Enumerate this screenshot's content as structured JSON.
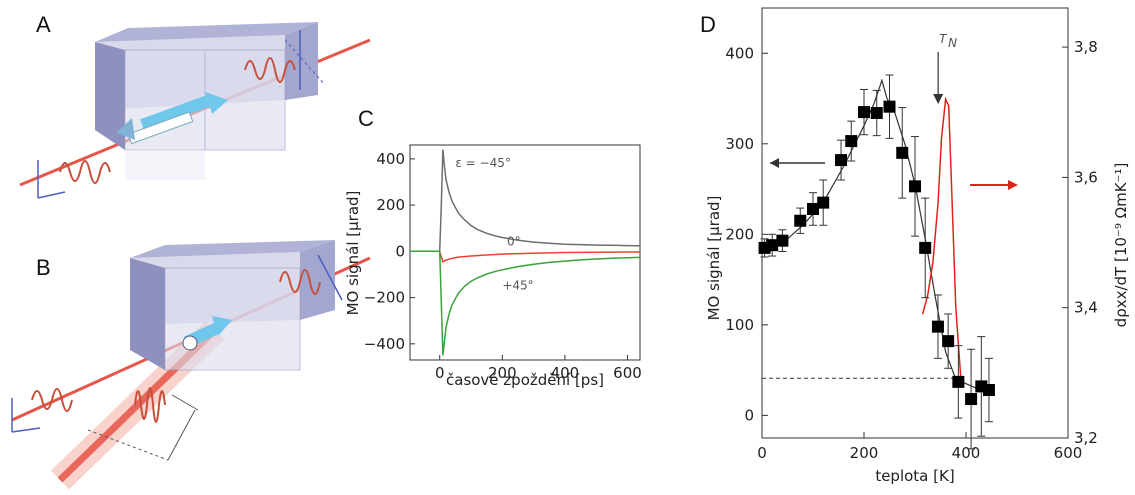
{
  "panels": {
    "a": "A",
    "b": "B",
    "c": "C",
    "d": "D"
  },
  "chart_data": [
    {
      "panel": "C",
      "type": "line",
      "xlabel": "časové zpoždění [ps]",
      "ylabel": "MO signál [μrad]",
      "xlim": [
        -95,
        640
      ],
      "ylim": [
        -470,
        460
      ],
      "xticks": [
        "0",
        "200",
        "400",
        "600"
      ],
      "yticks": [
        "400",
        "200",
        "0",
        "−200",
        "−400"
      ],
      "grid": false,
      "legend": "none",
      "series": [
        {
          "color": "#6e6e6e",
          "x": [
            -95,
            -40,
            0,
            5,
            10,
            15,
            20,
            30,
            40,
            60,
            80,
            100,
            120,
            150,
            180,
            200,
            250,
            300,
            350,
            400,
            450,
            500,
            550,
            600,
            640
          ],
          "y": [
            0,
            0,
            0,
            200,
            440,
            370,
            310,
            255,
            215,
            165,
            135,
            112,
            95,
            78,
            66,
            60,
            48,
            40,
            35,
            31,
            29,
            27,
            26,
            25,
            24
          ]
        },
        {
          "color": "#e8432e",
          "x": [
            -95,
            -40,
            0,
            5,
            10,
            20,
            40,
            60,
            100,
            150,
            200,
            300,
            400,
            500,
            600,
            640
          ],
          "y": [
            0,
            0,
            0,
            -25,
            -45,
            -38,
            -30,
            -25,
            -20,
            -16,
            -12,
            -8,
            -5,
            -4,
            -3,
            -3
          ]
        },
        {
          "color": "#3aa23a",
          "x": [
            -95,
            -40,
            0,
            5,
            10,
            15,
            20,
            30,
            40,
            60,
            80,
            100,
            120,
            150,
            180,
            200,
            250,
            300,
            350,
            400,
            450,
            500,
            550,
            600,
            640
          ],
          "y": [
            0,
            0,
            0,
            -220,
            -450,
            -390,
            -330,
            -270,
            -230,
            -180,
            -150,
            -130,
            -115,
            -98,
            -86,
            -80,
            -66,
            -56,
            -48,
            -42,
            -37,
            -33,
            -30,
            -28,
            -26
          ]
        }
      ],
      "annotations": [
        {
          "text": "ε = −45°",
          "x": 50,
          "y": 365
        },
        {
          "text": "0°",
          "x": 215,
          "y": 25
        },
        {
          "text": "+45°",
          "x": 200,
          "y": -165
        }
      ]
    },
    {
      "panel": "D",
      "type": "line",
      "xlabel": "teplota [K]",
      "ylabel": "MO signál [μrad]",
      "ylabel_right": "dρxx/dT [10⁻⁹ ΩmK⁻¹]",
      "xlim": [
        0,
        600
      ],
      "ylim": [
        -25,
        450
      ],
      "ylim_right": [
        3.2,
        3.86
      ],
      "xticks": [
        "0",
        "200",
        "400",
        "600"
      ],
      "yticks": [
        "0",
        "100",
        "200",
        "300",
        "400"
      ],
      "yticks_right": [
        "3,2",
        "3,4",
        "3,6",
        "3,8"
      ],
      "grid": false,
      "legend": "none",
      "marker_series": {
        "color": "#000000",
        "x": [
          5,
          20,
          40,
          75,
          100,
          120,
          155,
          175,
          200,
          225,
          250,
          275,
          300,
          320,
          345,
          365,
          385,
          410,
          430,
          445
        ],
        "y": [
          185,
          188,
          193,
          215,
          228,
          235,
          282,
          303,
          335,
          334,
          341,
          290,
          253,
          185,
          98,
          82,
          37,
          18,
          32,
          28
        ],
        "err": [
          10,
          12,
          12,
          14,
          18,
          25,
          22,
          22,
          25,
          25,
          35,
          50,
          55,
          55,
          35,
          30,
          40,
          55,
          55,
          35
        ]
      },
      "line_series": {
        "color": "#333333",
        "x": [
          5,
          40,
          80,
          120,
          160,
          200,
          220,
          235,
          245,
          260,
          280,
          300,
          320,
          340,
          360,
          380,
          400,
          420,
          445
        ],
        "y": [
          182,
          190,
          210,
          235,
          275,
          320,
          345,
          370,
          350,
          335,
          300,
          255,
          195,
          130,
          70,
          40,
          35,
          30,
          28
        ]
      },
      "red_series": {
        "color": "#e0221a",
        "axis": "right",
        "x": [
          315,
          325,
          335,
          345,
          352,
          360,
          366,
          372,
          380,
          390
        ],
        "y": [
          3.39,
          3.42,
          3.47,
          3.56,
          3.66,
          3.72,
          3.71,
          3.58,
          3.4,
          3.29
        ]
      },
      "dashed_level": 41,
      "annotations": [
        {
          "text": "T",
          "sub": "N",
          "x": 365
        }
      ]
    }
  ]
}
